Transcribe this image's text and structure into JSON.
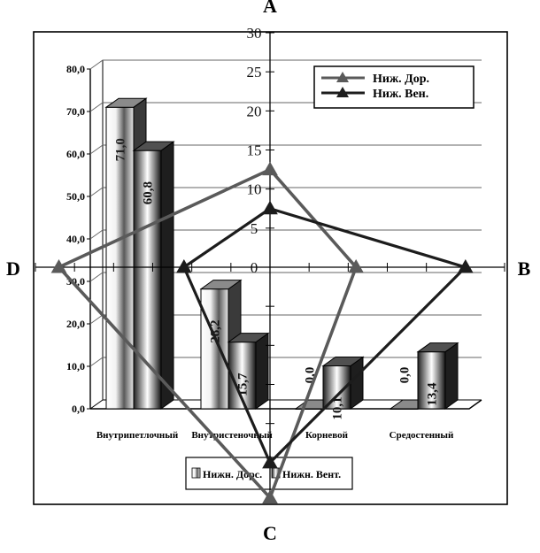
{
  "chart_data": [
    {
      "type": "bar",
      "categories": [
        "Внутрипетлочный",
        "Внутристеночный",
        "Корневой",
        "Средостенный"
      ],
      "series": [
        {
          "name": "Нижн. Дорс.",
          "values": [
            71.0,
            28.2,
            0.0,
            0.0
          ]
        },
        {
          "name": "Нижн. Вент.",
          "values": [
            60.8,
            15.7,
            10.1,
            13.4
          ]
        }
      ],
      "data_labels": [
        [
          "71,0",
          "28,2",
          "0,0",
          "0,0"
        ],
        [
          "60,8",
          "15,7",
          "10,1",
          "13,4"
        ]
      ],
      "yticks": [
        "0,0",
        "10,0",
        "20,0",
        "30,0",
        "40,0",
        "50,0",
        "60,0",
        "70,0",
        "80,0"
      ],
      "ylim": [
        0,
        80
      ],
      "grid": true,
      "legend_position": "bottom"
    },
    {
      "type": "radar",
      "axes": [
        "A",
        "B",
        "C",
        "D"
      ],
      "series": [
        {
          "name": "Ниж. Дор.",
          "values": {
            "A": 12.5,
            "B": 11.0,
            "C": 29.5,
            "D": 27.0
          }
        },
        {
          "name": "Ниж. Вен.",
          "values": {
            "A": 7.5,
            "B": 25.0,
            "C": 25.0,
            "D": 11.0
          }
        }
      ],
      "ticks": [
        "0",
        "5",
        "10",
        "15",
        "20",
        "25",
        "30"
      ],
      "range": [
        0,
        30
      ],
      "grid": true,
      "legend_position": "top-right"
    }
  ],
  "colors": {
    "dors_line": "#5a5a5a",
    "vent_line": "#1c1c1c",
    "frame": "#000000"
  }
}
